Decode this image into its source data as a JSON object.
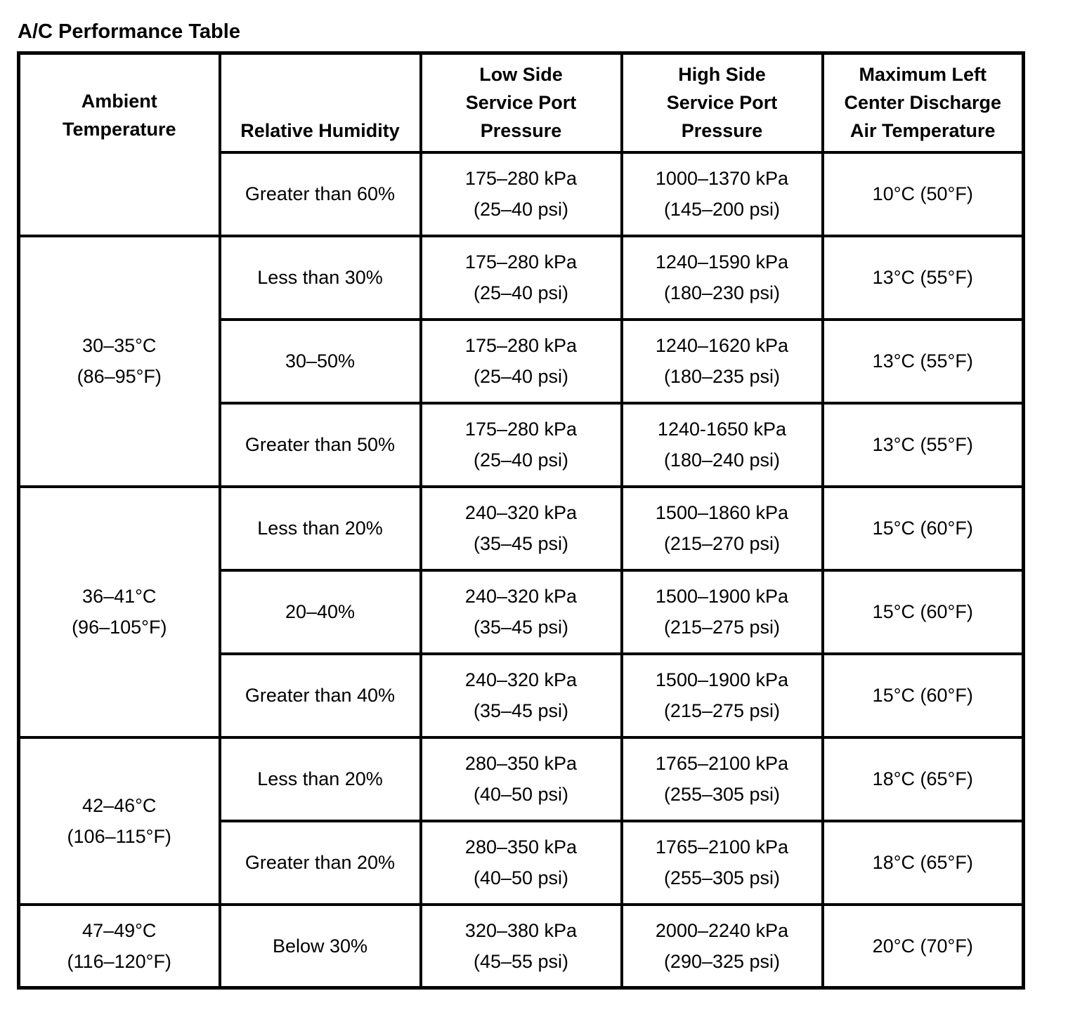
{
  "title": "A/C Performance Table",
  "colors": {
    "text": "#000000",
    "border": "#000000",
    "background": "#ffffff"
  },
  "table": {
    "headers": [
      "Ambient\nTemperature",
      "Relative Humidity",
      "Low Side\nService Port\nPressure",
      "High Side\nService Port\nPressure",
      "Maximum Left\nCenter Discharge\nAir Temperature"
    ],
    "groups": [
      {
        "ambient": "",
        "rows": [
          {
            "humidity": "Greater than 60%",
            "low": "175–280 kPa\n(25–40 psi)",
            "high": "1000–1370 kPa\n(145–200 psi)",
            "discharge": "10°C (50°F)"
          }
        ]
      },
      {
        "ambient": "30–35°C\n(86–95°F)",
        "rows": [
          {
            "humidity": "Less than 30%",
            "low": "175–280 kPa\n(25–40 psi)",
            "high": "1240–1590 kPa\n(180–230 psi)",
            "discharge": "13°C (55°F)"
          },
          {
            "humidity": "30–50%",
            "low": "175–280 kPa\n(25–40 psi)",
            "high": "1240–1620 kPa\n(180–235 psi)",
            "discharge": "13°C (55°F)"
          },
          {
            "humidity": "Greater than 50%",
            "low": "175–280 kPa\n(25–40 psi)",
            "high": "1240-1650 kPa\n(180–240 psi)",
            "discharge": "13°C (55°F)"
          }
        ]
      },
      {
        "ambient": "36–41°C\n(96–105°F)",
        "rows": [
          {
            "humidity": "Less than 20%",
            "low": "240–320 kPa\n(35–45 psi)",
            "high": "1500–1860 kPa\n(215–270 psi)",
            "discharge": "15°C (60°F)"
          },
          {
            "humidity": "20–40%",
            "low": "240–320 kPa\n(35–45 psi)",
            "high": "1500–1900 kPa\n(215–275 psi)",
            "discharge": "15°C (60°F)"
          },
          {
            "humidity": "Greater than 40%",
            "low": "240–320 kPa\n(35–45 psi)",
            "high": "1500–1900 kPa\n(215–275 psi)",
            "discharge": "15°C (60°F)"
          }
        ]
      },
      {
        "ambient": "42–46°C\n(106–115°F)",
        "rows": [
          {
            "humidity": "Less than 20%",
            "low": "280–350 kPa\n(40–50 psi)",
            "high": "1765–2100 kPa\n(255–305 psi)",
            "discharge": "18°C (65°F)"
          },
          {
            "humidity": "Greater than 20%",
            "low": "280–350 kPa\n(40–50 psi)",
            "high": "1765–2100 kPa\n(255–305 psi)",
            "discharge": "18°C (65°F)"
          }
        ]
      },
      {
        "ambient": "47–49°C\n(116–120°F)",
        "rows": [
          {
            "humidity": "Below 30%",
            "low": "320–380 kPa\n(45–55 psi)",
            "high": "2000–2240 kPa\n(290–325 psi)",
            "discharge": "20°C (70°F)"
          }
        ]
      }
    ]
  }
}
